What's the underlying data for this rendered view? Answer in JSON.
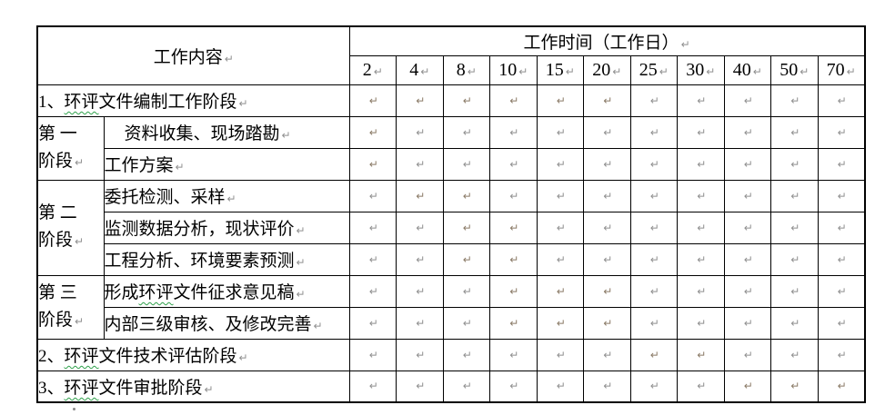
{
  "table": {
    "header": {
      "content_label": "工作内容",
      "time_label": "工作时间（工作日）",
      "day_columns": [
        "2",
        "4",
        "8",
        "10",
        "15",
        "20",
        "25",
        "30",
        "40",
        "50",
        "70"
      ]
    },
    "mark": "↵",
    "colors": {
      "highlight_red": "#fe0000",
      "paragraph_mark_gray": "#8f8f8f",
      "border_black": "#000000",
      "spellcheck_squiggle_green": "#2fa14b"
    },
    "rows": [
      {
        "kind": "full",
        "label": "1、环评文件编制工作阶段",
        "squiggle": "环评",
        "red": [
          0,
          1,
          2,
          3,
          4,
          5
        ]
      },
      {
        "kind": "task",
        "label": "资料收集、现场踏勘",
        "indent": true,
        "red": [
          0
        ]
      },
      {
        "kind": "task",
        "label": "工作方案",
        "red": [
          0
        ]
      },
      {
        "kind": "task",
        "label": "委托检测、采样",
        "red": [
          1,
          2
        ]
      },
      {
        "kind": "task",
        "label": "监测数据分析，现状评价",
        "red": [
          2,
          3
        ]
      },
      {
        "kind": "task",
        "label": "工程分析、环境要素预测",
        "red": [
          2,
          3
        ]
      },
      {
        "kind": "task",
        "label": "形成环评文件征求意见稿",
        "squiggle": "环评",
        "red": [
          3,
          4,
          5
        ]
      },
      {
        "kind": "task",
        "label": "内部三级审核、及修改完善",
        "red": [
          3,
          4,
          5
        ]
      },
      {
        "kind": "full",
        "label": "2、环评文件技术评估阶段",
        "squiggle": "环评",
        "red": [
          6,
          7
        ]
      },
      {
        "kind": "full",
        "label": "3、环评文件审批阶段",
        "squiggle": "环评",
        "red": [
          8,
          9,
          10
        ]
      }
    ],
    "stages": [
      {
        "row_index": 1,
        "rowspan": 2,
        "lines": [
          "第 一",
          "阶段"
        ]
      },
      {
        "row_index": 3,
        "rowspan": 3,
        "lines": [
          "第 二",
          "阶段"
        ]
      },
      {
        "row_index": 6,
        "rowspan": 2,
        "lines": [
          "第 三",
          "阶段"
        ]
      }
    ]
  }
}
